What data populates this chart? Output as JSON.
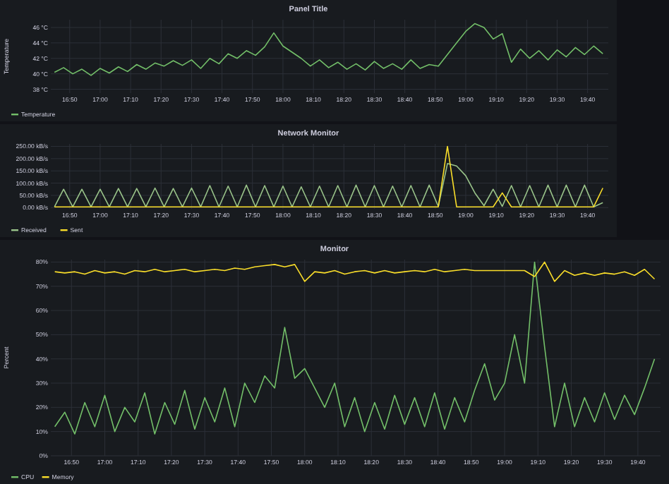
{
  "chart_data": [
    {
      "type": "line",
      "title": "Panel Title",
      "ylabel": "Temperature",
      "grid": true,
      "legend": "bottom",
      "xlim": [
        16.73,
        19.78
      ],
      "x": [
        16.75,
        16.8,
        16.85,
        16.9,
        16.95,
        17,
        17.05,
        17.1,
        17.15,
        17.2,
        17.25,
        17.3,
        17.35,
        17.4,
        17.45,
        17.5,
        17.55,
        17.6,
        17.65,
        17.7,
        17.75,
        17.8,
        17.85,
        17.9,
        17.95,
        18,
        18.05,
        18.1,
        18.15,
        18.2,
        18.25,
        18.3,
        18.35,
        18.4,
        18.45,
        18.5,
        18.55,
        18.6,
        18.65,
        18.7,
        18.75,
        18.8,
        18.85,
        18.9,
        18.95,
        19,
        19.05,
        19.1,
        19.15,
        19.2,
        19.25,
        19.3,
        19.35,
        19.4,
        19.45,
        19.5,
        19.55,
        19.6,
        19.65,
        19.7,
        19.75
      ],
      "xticks": [
        {
          "value": 16.8333,
          "label": "16:50"
        },
        {
          "value": 17,
          "label": "17:00"
        },
        {
          "value": 17.1667,
          "label": "17:10"
        },
        {
          "value": 17.3333,
          "label": "17:20"
        },
        {
          "value": 17.5,
          "label": "17:30"
        },
        {
          "value": 17.6667,
          "label": "17:40"
        },
        {
          "value": 17.8333,
          "label": "17:50"
        },
        {
          "value": 18,
          "label": "18:00"
        },
        {
          "value": 18.1667,
          "label": "18:10"
        },
        {
          "value": 18.3333,
          "label": "18:20"
        },
        {
          "value": 18.5,
          "label": "18:30"
        },
        {
          "value": 18.6667,
          "label": "18:40"
        },
        {
          "value": 18.8333,
          "label": "18:50"
        },
        {
          "value": 19,
          "label": "19:00"
        },
        {
          "value": 19.1667,
          "label": "19:10"
        },
        {
          "value": 19.3333,
          "label": "19:20"
        },
        {
          "value": 19.5,
          "label": "19:30"
        },
        {
          "value": 19.6667,
          "label": "19:40"
        }
      ],
      "ylim": [
        37.5,
        47
      ],
      "yticks": [
        {
          "value": 38,
          "label": "38 °C"
        },
        {
          "value": 40,
          "label": "40 °C"
        },
        {
          "value": 42,
          "label": "42 °C"
        },
        {
          "value": 44,
          "label": "44 °C"
        },
        {
          "value": 46,
          "label": "46 °C"
        }
      ],
      "series": [
        {
          "name": "Temperature",
          "color": "#73bf69",
          "values": [
            40.2,
            40.8,
            40.0,
            40.6,
            39.8,
            40.7,
            40.1,
            40.9,
            40.3,
            41.2,
            40.6,
            41.4,
            41.0,
            41.7,
            41.1,
            41.8,
            40.7,
            42.0,
            41.3,
            42.6,
            42.0,
            43.0,
            42.4,
            43.5,
            45.3,
            43.6,
            42.8,
            42.0,
            41.0,
            41.8,
            40.8,
            41.5,
            40.6,
            41.3,
            40.5,
            41.6,
            40.7,
            41.3,
            40.6,
            41.8,
            40.7,
            41.2,
            41.0,
            42.5,
            44.0,
            45.5,
            46.5,
            46.0,
            44.5,
            45.2,
            41.5,
            43.2,
            42.0,
            43.0,
            41.8,
            43.1,
            42.2,
            43.4,
            42.5,
            43.6,
            42.6
          ]
        }
      ]
    },
    {
      "type": "line",
      "title": "Network Monitor",
      "grid": true,
      "legend": "bottom",
      "xlim": [
        16.73,
        19.78
      ],
      "x": [
        16.75,
        16.8,
        16.85,
        16.9,
        16.95,
        17,
        17.05,
        17.1,
        17.15,
        17.2,
        17.25,
        17.3,
        17.35,
        17.4,
        17.45,
        17.5,
        17.55,
        17.6,
        17.65,
        17.7,
        17.75,
        17.8,
        17.85,
        17.9,
        17.95,
        18,
        18.05,
        18.1,
        18.15,
        18.2,
        18.25,
        18.3,
        18.35,
        18.4,
        18.45,
        18.5,
        18.55,
        18.6,
        18.65,
        18.7,
        18.75,
        18.8,
        18.85,
        18.9,
        18.95,
        19,
        19.05,
        19.1,
        19.15,
        19.2,
        19.25,
        19.3,
        19.35,
        19.4,
        19.45,
        19.5,
        19.55,
        19.6,
        19.65,
        19.7,
        19.75
      ],
      "xticks": [
        {
          "value": 16.8333,
          "label": "16:50"
        },
        {
          "value": 17,
          "label": "17:00"
        },
        {
          "value": 17.1667,
          "label": "17:10"
        },
        {
          "value": 17.3333,
          "label": "17:20"
        },
        {
          "value": 17.5,
          "label": "17:30"
        },
        {
          "value": 17.6667,
          "label": "17:40"
        },
        {
          "value": 17.8333,
          "label": "17:50"
        },
        {
          "value": 18,
          "label": "18:00"
        },
        {
          "value": 18.1667,
          "label": "18:10"
        },
        {
          "value": 18.3333,
          "label": "18:20"
        },
        {
          "value": 18.5,
          "label": "18:30"
        },
        {
          "value": 18.6667,
          "label": "18:40"
        },
        {
          "value": 18.8333,
          "label": "18:50"
        },
        {
          "value": 19,
          "label": "19:00"
        },
        {
          "value": 19.1667,
          "label": "19:10"
        },
        {
          "value": 19.3333,
          "label": "19:20"
        },
        {
          "value": 19.5,
          "label": "19:30"
        },
        {
          "value": 19.6667,
          "label": "19:40"
        }
      ],
      "ylim": [
        -5,
        260
      ],
      "yticks": [
        {
          "value": 0,
          "label": "0.00 kB/s"
        },
        {
          "value": 50,
          "label": "50.00 kB/s"
        },
        {
          "value": 100,
          "label": "100.00 kB/s"
        },
        {
          "value": 150,
          "label": "150.00 kB/s"
        },
        {
          "value": 200,
          "label": "200.00 kB/s"
        },
        {
          "value": 250,
          "label": "250.00 kB/s"
        }
      ],
      "series": [
        {
          "name": "Received",
          "color": "#9ac48a",
          "values": [
            3,
            75,
            3,
            75,
            3,
            75,
            3,
            78,
            3,
            78,
            3,
            80,
            3,
            78,
            3,
            80,
            3,
            90,
            3,
            88,
            3,
            92,
            3,
            90,
            3,
            88,
            3,
            85,
            3,
            88,
            3,
            90,
            3,
            92,
            3,
            90,
            3,
            88,
            3,
            90,
            3,
            92,
            5,
            180,
            170,
            130,
            60,
            8,
            75,
            5,
            90,
            3,
            90,
            3,
            92,
            3,
            92,
            3,
            92,
            3,
            20
          ]
        },
        {
          "name": "Sent",
          "color": "#fade2a",
          "values": [
            3,
            3,
            3,
            3,
            3,
            3,
            3,
            3,
            3,
            3,
            3,
            3,
            3,
            3,
            3,
            3,
            3,
            3,
            3,
            3,
            3,
            3,
            3,
            3,
            3,
            3,
            3,
            3,
            3,
            3,
            3,
            3,
            3,
            3,
            3,
            3,
            3,
            3,
            3,
            3,
            3,
            3,
            3,
            250,
            3,
            3,
            3,
            3,
            3,
            60,
            3,
            3,
            3,
            3,
            3,
            3,
            3,
            3,
            3,
            3,
            80
          ]
        }
      ]
    },
    {
      "type": "line",
      "title": "Monitor",
      "ylabel": "Percent",
      "grid": true,
      "legend": "bottom",
      "xlim": [
        16.73,
        19.78
      ],
      "x": [
        16.75,
        16.8,
        16.85,
        16.9,
        16.95,
        17,
        17.05,
        17.1,
        17.15,
        17.2,
        17.25,
        17.3,
        17.35,
        17.4,
        17.45,
        17.5,
        17.55,
        17.6,
        17.65,
        17.7,
        17.75,
        17.8,
        17.85,
        17.9,
        17.95,
        18,
        18.05,
        18.1,
        18.15,
        18.2,
        18.25,
        18.3,
        18.35,
        18.4,
        18.45,
        18.5,
        18.55,
        18.6,
        18.65,
        18.7,
        18.75,
        18.8,
        18.85,
        18.9,
        18.95,
        19,
        19.05,
        19.1,
        19.15,
        19.2,
        19.25,
        19.3,
        19.35,
        19.4,
        19.45,
        19.5,
        19.55,
        19.6,
        19.65,
        19.7,
        19.75
      ],
      "xticks": [
        {
          "value": 16.8333,
          "label": "16:50"
        },
        {
          "value": 17,
          "label": "17:00"
        },
        {
          "value": 17.1667,
          "label": "17:10"
        },
        {
          "value": 17.3333,
          "label": "17:20"
        },
        {
          "value": 17.5,
          "label": "17:30"
        },
        {
          "value": 17.6667,
          "label": "17:40"
        },
        {
          "value": 17.8333,
          "label": "17:50"
        },
        {
          "value": 18,
          "label": "18:00"
        },
        {
          "value": 18.1667,
          "label": "18:10"
        },
        {
          "value": 18.3333,
          "label": "18:20"
        },
        {
          "value": 18.5,
          "label": "18:30"
        },
        {
          "value": 18.6667,
          "label": "18:40"
        },
        {
          "value": 18.8333,
          "label": "18:50"
        },
        {
          "value": 19,
          "label": "19:00"
        },
        {
          "value": 19.1667,
          "label": "19:10"
        },
        {
          "value": 19.3333,
          "label": "19:20"
        },
        {
          "value": 19.5,
          "label": "19:30"
        },
        {
          "value": 19.6667,
          "label": "19:40"
        }
      ],
      "ylim": [
        0,
        81
      ],
      "yticks": [
        {
          "value": 0,
          "label": "0%"
        },
        {
          "value": 10,
          "label": "10%"
        },
        {
          "value": 20,
          "label": "20%"
        },
        {
          "value": 30,
          "label": "30%"
        },
        {
          "value": 40,
          "label": "40%"
        },
        {
          "value": 50,
          "label": "50%"
        },
        {
          "value": 60,
          "label": "60%"
        },
        {
          "value": 70,
          "label": "70%"
        },
        {
          "value": 80,
          "label": "80%"
        }
      ],
      "series": [
        {
          "name": "CPU",
          "color": "#73bf69",
          "values": [
            12,
            18,
            9,
            22,
            12,
            25,
            10,
            20,
            14,
            26,
            9,
            22,
            13,
            27,
            11,
            24,
            14,
            28,
            12,
            30,
            22,
            33,
            28,
            53,
            32,
            36,
            28,
            20,
            30,
            12,
            24,
            10,
            22,
            11,
            25,
            13,
            24,
            12,
            26,
            11,
            24,
            14,
            27,
            38,
            23,
            30,
            50,
            30,
            80,
            45,
            12,
            30,
            12,
            24,
            14,
            26,
            15,
            25,
            17,
            28,
            40
          ]
        },
        {
          "name": "Memory",
          "color": "#fade2a",
          "values": [
            76,
            75.5,
            76,
            75,
            76.5,
            75.5,
            76,
            75,
            76.5,
            76,
            77,
            76,
            76.5,
            77,
            76,
            76.5,
            77,
            76.5,
            77.5,
            77,
            78,
            78.5,
            79,
            78,
            79,
            72,
            76,
            75.5,
            76.5,
            75,
            76,
            76.5,
            75.5,
            76.5,
            75.5,
            76,
            76.5,
            76,
            77,
            76,
            76.5,
            77,
            76.5,
            76.5,
            76.5,
            76.5,
            76.5,
            76.5,
            74,
            80,
            72,
            76.5,
            74.5,
            75.5,
            74.5,
            75.5,
            75,
            76,
            74.5,
            77,
            73
          ]
        }
      ]
    }
  ]
}
